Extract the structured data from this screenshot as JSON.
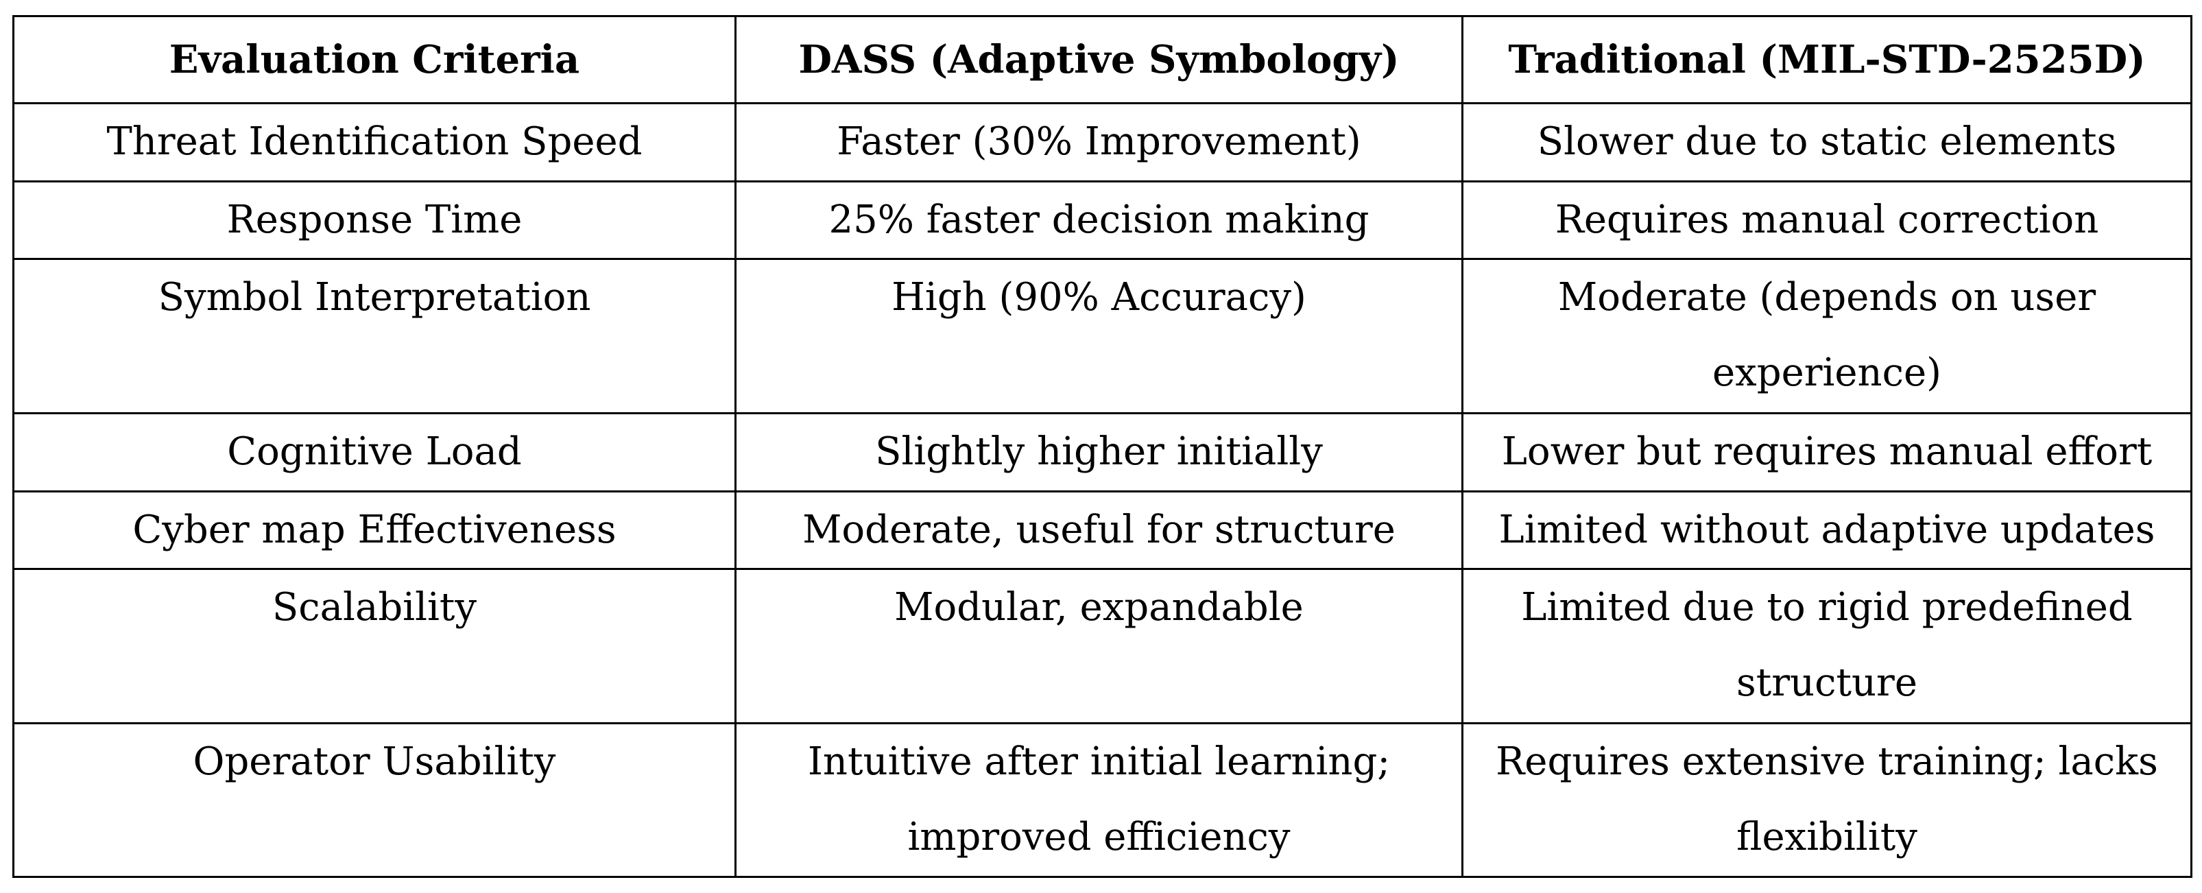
{
  "table": {
    "headers": [
      "Evaluation Criteria",
      "DASS (Adaptive Symbology)",
      "Traditional (MIL-STD-2525D)"
    ],
    "rows": [
      [
        "Threat Identification Speed",
        "Faster (30% Improvement)",
        "Slower due to static elements"
      ],
      [
        "Response Time",
        "25% faster decision making",
        "Requires manual correction"
      ],
      [
        "Symbol Interpretation",
        "High (90% Accuracy)",
        "Moderate (depends on user experience)"
      ],
      [
        "Cognitive Load",
        "Slightly higher initially",
        "Lower but requires manual effort"
      ],
      [
        "Cyber map Effectiveness",
        "Moderate, useful for structure",
        "Limited without adaptive updates"
      ],
      [
        "Scalability",
        "Modular, expandable",
        "Limited due to rigid predefined structure"
      ],
      [
        "Operator Usability",
        "Intuitive after initial learning; improved efficiency",
        "Requires extensive training; lacks flexibility"
      ]
    ]
  }
}
